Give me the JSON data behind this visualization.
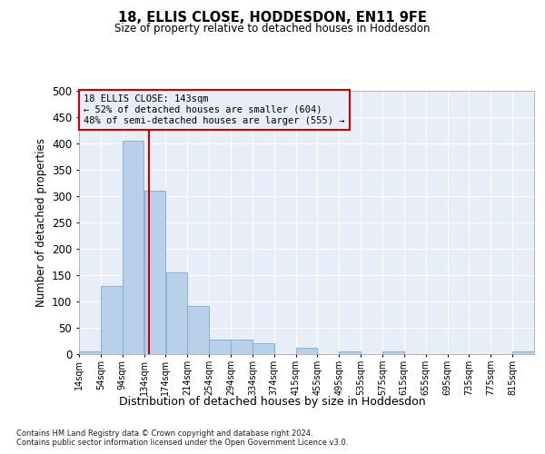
{
  "title1": "18, ELLIS CLOSE, HODDESDON, EN11 9FE",
  "title2": "Size of property relative to detached houses in Hoddesdon",
  "xlabel": "Distribution of detached houses by size in Hoddesdon",
  "ylabel": "Number of detached properties",
  "footnote1": "Contains HM Land Registry data © Crown copyright and database right 2024.",
  "footnote2": "Contains public sector information licensed under the Open Government Licence v3.0.",
  "bin_labels": [
    "14sqm",
    "54sqm",
    "94sqm",
    "134sqm",
    "174sqm",
    "214sqm",
    "254sqm",
    "294sqm",
    "334sqm",
    "374sqm",
    "415sqm",
    "455sqm",
    "495sqm",
    "535sqm",
    "575sqm",
    "615sqm",
    "655sqm",
    "695sqm",
    "735sqm",
    "775sqm",
    "815sqm"
  ],
  "bar_heights": [
    5,
    130,
    405,
    310,
    155,
    92,
    28,
    28,
    20,
    0,
    12,
    0,
    5,
    0,
    5,
    0,
    0,
    0,
    0,
    0,
    5
  ],
  "bar_color": "#b8d0ea",
  "bar_edge_color": "#7aaacf",
  "vline_x": 143,
  "vline_color": "#cc0000",
  "ylim": [
    0,
    500
  ],
  "yticks": [
    0,
    50,
    100,
    150,
    200,
    250,
    300,
    350,
    400,
    450,
    500
  ],
  "annotation_line1": "18 ELLIS CLOSE: 143sqm",
  "annotation_line2": "← 52% of detached houses are smaller (604)",
  "annotation_line3": "48% of semi-detached houses are larger (555) →",
  "annotation_box_color": "#cc0000",
  "bg_color": "#ffffff",
  "plot_bg_color": "#e8eef7",
  "grid_color": "#ffffff"
}
